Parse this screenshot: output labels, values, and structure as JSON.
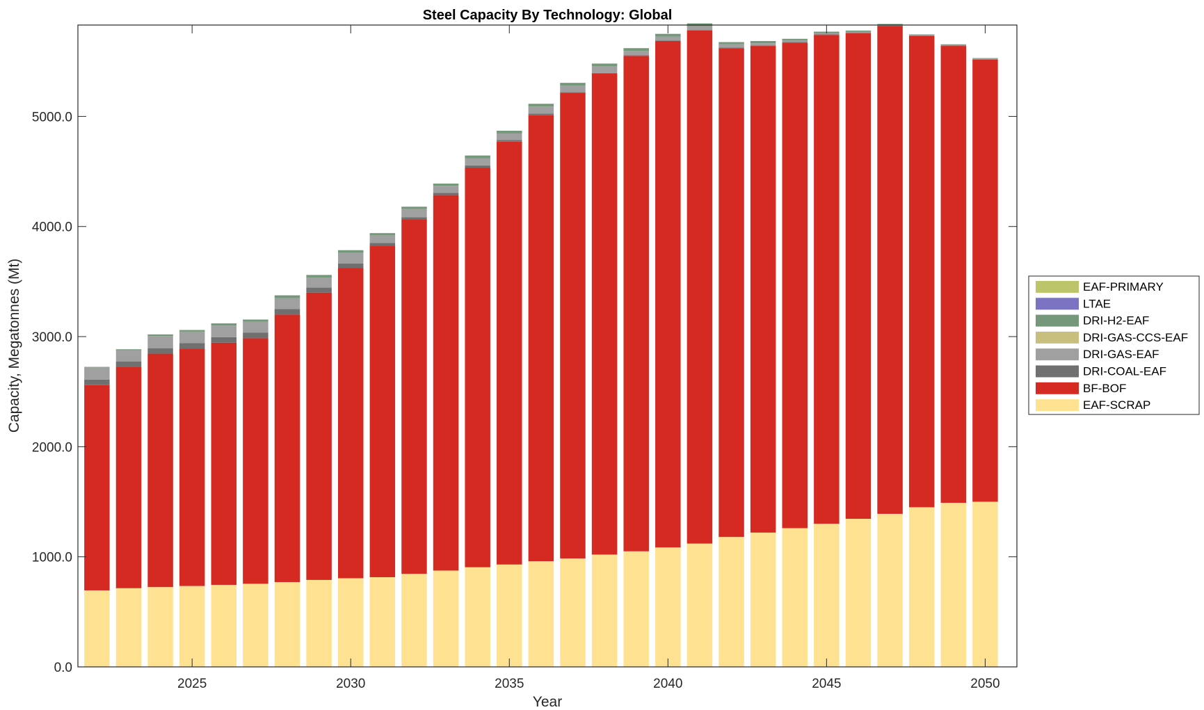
{
  "chart_data": {
    "type": "bar",
    "stacked": true,
    "title": "Steel Capacity By Technology: Global",
    "xlabel": "Year",
    "ylabel": "Capacity, Megatonnes (Mt)",
    "ylim": [
      0,
      5830
    ],
    "xlim": [
      2021.4,
      2051.0
    ],
    "yticks": [
      0,
      1000,
      2000,
      3000,
      4000,
      5000
    ],
    "ytick_labels": [
      "0.0",
      "1000.0",
      "2000.0",
      "3000.0",
      "4000.0",
      "5000.0"
    ],
    "xticks": [
      2025,
      2030,
      2035,
      2040,
      2045,
      2050
    ],
    "xtick_labels": [
      "2025",
      "2030",
      "2035",
      "2040",
      "2045",
      "2050"
    ],
    "legend_position": "right",
    "categories": [
      2022,
      2023,
      2024,
      2025,
      2026,
      2027,
      2028,
      2029,
      2030,
      2031,
      2032,
      2033,
      2034,
      2035,
      2036,
      2037,
      2038,
      2039,
      2040,
      2041,
      2042,
      2043,
      2044,
      2045,
      2046,
      2047,
      2048,
      2049,
      2050
    ],
    "series": [
      {
        "name": "EAF-SCRAP",
        "color": "#FFE291",
        "values": [
          695,
          715,
          725,
          735,
          745,
          755,
          770,
          790,
          805,
          815,
          845,
          875,
          905,
          930,
          960,
          985,
          1020,
          1050,
          1085,
          1120,
          1180,
          1220,
          1260,
          1300,
          1345,
          1390,
          1450,
          1490,
          1500
        ]
      },
      {
        "name": "BF-BOF",
        "color": "#D42A22",
        "values": [
          1865,
          2010,
          2120,
          2155,
          2200,
          2230,
          2430,
          2610,
          2820,
          3010,
          3220,
          3410,
          3630,
          3840,
          4050,
          4230,
          4370,
          4500,
          4600,
          4660,
          4440,
          4420,
          4410,
          4440,
          4410,
          4430,
          4280,
          4150,
          4015
        ]
      },
      {
        "name": "DRI-COAL-EAF",
        "color": "#707070",
        "values": [
          50,
          50,
          50,
          50,
          50,
          50,
          50,
          45,
          40,
          25,
          20,
          20,
          20,
          15,
          15,
          5,
          5,
          5,
          5,
          5,
          5,
          5,
          5,
          5,
          5,
          5,
          5,
          5,
          5
        ]
      },
      {
        "name": "DRI-GAS-EAF",
        "color": "#A0A0A0",
        "values": [
          110,
          100,
          110,
          105,
          105,
          100,
          100,
          90,
          95,
          70,
          75,
          65,
          65,
          60,
          65,
          60,
          60,
          40,
          35,
          35,
          30,
          20,
          15,
          10,
          10,
          5,
          5,
          5,
          5
        ]
      },
      {
        "name": "DRI-GAS-CCS-EAF",
        "color": "#C8BE7E",
        "values": [
          0,
          0,
          0,
          0,
          0,
          0,
          0,
          0,
          0,
          0,
          0,
          0,
          0,
          0,
          0,
          0,
          0,
          0,
          0,
          0,
          0,
          0,
          0,
          0,
          0,
          0,
          0,
          0,
          0
        ]
      },
      {
        "name": "DRI-H2-EAF",
        "color": "#75987A",
        "values": [
          5,
          10,
          15,
          15,
          20,
          20,
          25,
          25,
          25,
          20,
          20,
          20,
          25,
          25,
          25,
          25,
          25,
          25,
          25,
          25,
          20,
          20,
          15,
          15,
          10,
          10,
          5,
          5,
          5
        ]
      },
      {
        "name": "LTAE",
        "color": "#7A74C2",
        "values": [
          0,
          0,
          0,
          0,
          0,
          0,
          0,
          0,
          0,
          0,
          0,
          0,
          0,
          0,
          0,
          0,
          0,
          0,
          0,
          0,
          0,
          0,
          0,
          0,
          0,
          0,
          0,
          0,
          0
        ]
      },
      {
        "name": "EAF-PRIMARY",
        "color": "#BCC56A",
        "values": [
          0,
          0,
          0,
          0,
          0,
          0,
          0,
          0,
          0,
          0,
          0,
          0,
          0,
          0,
          0,
          0,
          0,
          0,
          0,
          0,
          0,
          0,
          0,
          0,
          0,
          0,
          0,
          0,
          0
        ]
      }
    ],
    "legend_order": [
      "EAF-PRIMARY",
      "LTAE",
      "DRI-H2-EAF",
      "DRI-GAS-CCS-EAF",
      "DRI-GAS-EAF",
      "DRI-COAL-EAF",
      "BF-BOF",
      "EAF-SCRAP"
    ]
  }
}
